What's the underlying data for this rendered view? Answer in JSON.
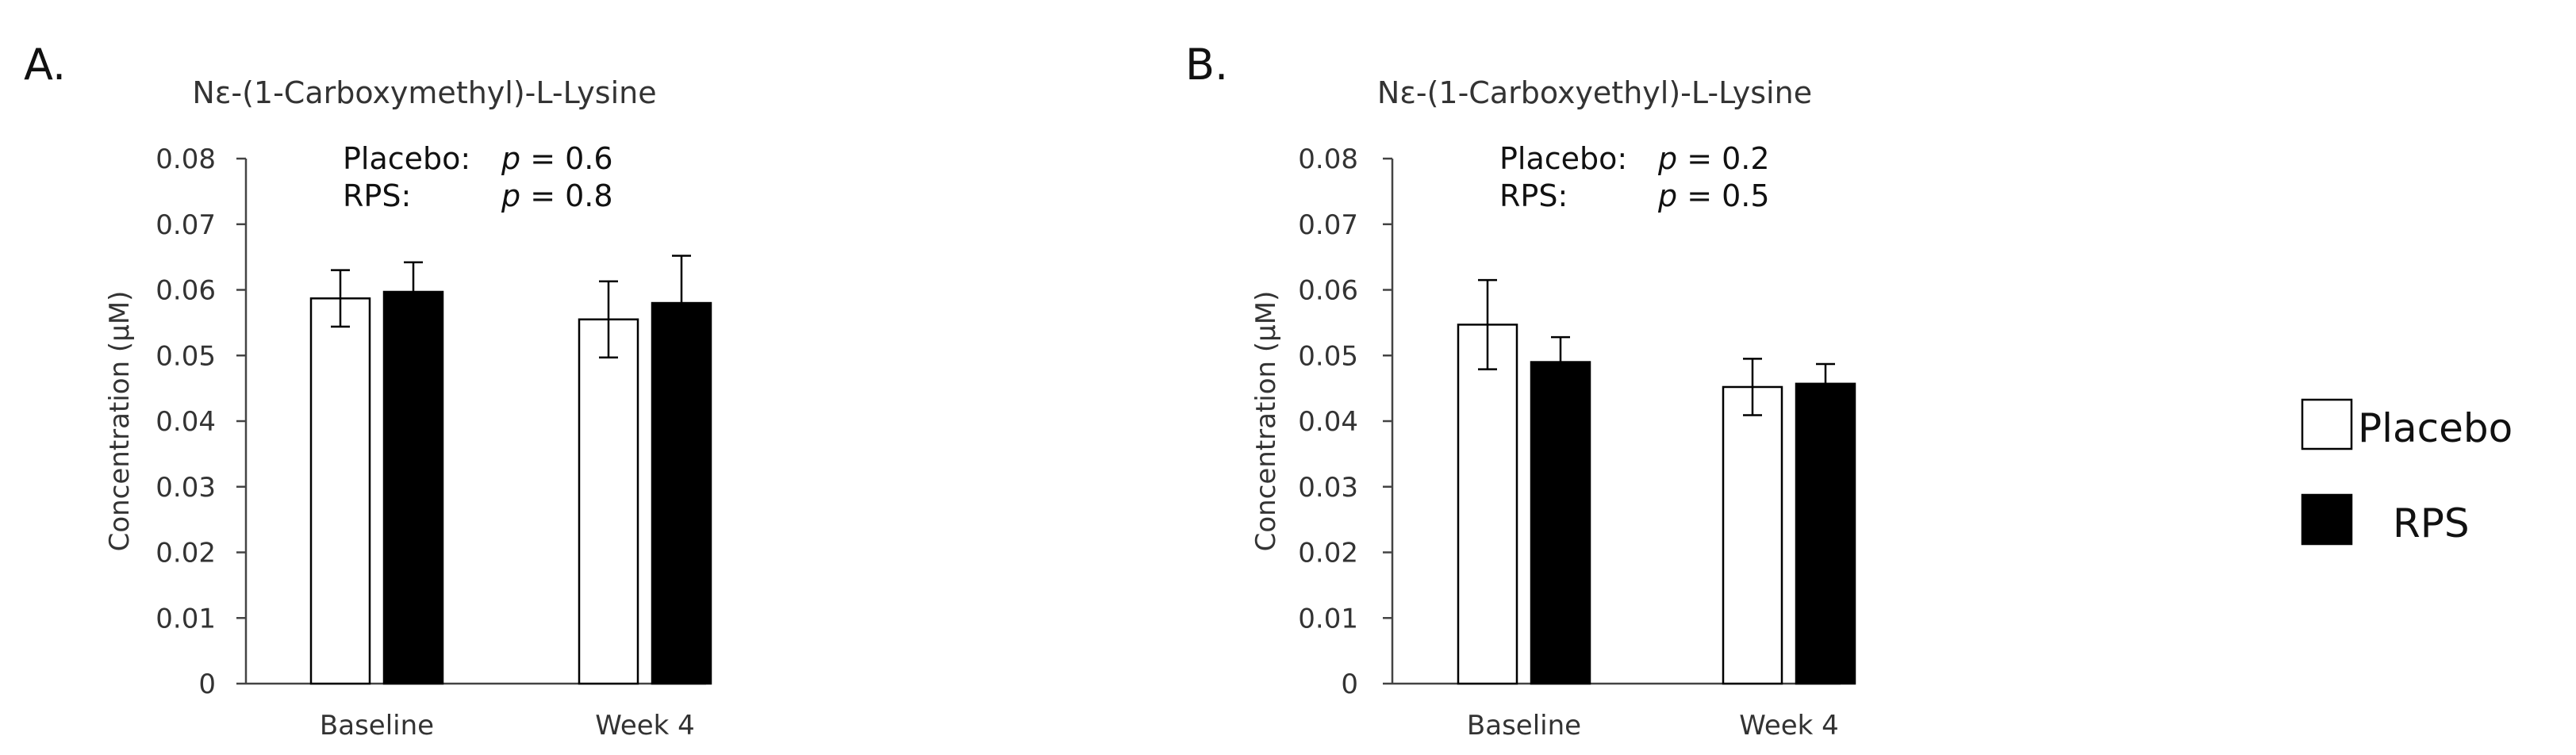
{
  "legend": [
    {
      "name": "Placebo",
      "fill": "#ffffff"
    },
    {
      "name": "RPS",
      "fill": "#000000"
    }
  ],
  "chart_data": [
    {
      "panel": "A.",
      "type": "bar",
      "title": "Nε-(1-Carboxymethyl)-L-Lysine",
      "ylabel": "Concentration (µM)",
      "ylim": [
        0,
        0.08
      ],
      "yticks": [
        "0",
        "0.01",
        "0.02",
        "0.03",
        "0.04",
        "0.05",
        "0.06",
        "0.07",
        "0.08"
      ],
      "categories": [
        "Baseline",
        "Week 4"
      ],
      "series": [
        {
          "name": "Placebo",
          "values": [
            0.0587,
            0.0555
          ],
          "errors": [
            0.0043,
            0.0058
          ]
        },
        {
          "name": "RPS",
          "values": [
            0.0597,
            0.058
          ],
          "errors": [
            0.0045,
            0.0072
          ]
        }
      ],
      "annotations": [
        {
          "label": "Placebo:",
          "p": "p",
          "value": "= 0.6"
        },
        {
          "label": "RPS:",
          "p": "p",
          "value": "= 0.8"
        }
      ]
    },
    {
      "panel": "B.",
      "type": "bar",
      "title": "Nε-(1-Carboxyethyl)-L-Lysine",
      "ylabel": "Concentration (µM)",
      "ylim": [
        0,
        0.08
      ],
      "yticks": [
        "0",
        "0.01",
        "0.02",
        "0.03",
        "0.04",
        "0.05",
        "0.06",
        "0.07",
        "0.08"
      ],
      "categories": [
        "Baseline",
        "Week 4"
      ],
      "series": [
        {
          "name": "Placebo",
          "values": [
            0.0547,
            0.0452
          ],
          "errors": [
            0.0068,
            0.0043
          ]
        },
        {
          "name": "RPS",
          "values": [
            0.049,
            0.0457
          ],
          "errors": [
            0.0038,
            0.003
          ]
        }
      ],
      "annotations": [
        {
          "label": "Placebo:",
          "p": "p",
          "value": "= 0.2"
        },
        {
          "label": "RPS:",
          "p": "p",
          "value": "= 0.5"
        }
      ]
    }
  ]
}
